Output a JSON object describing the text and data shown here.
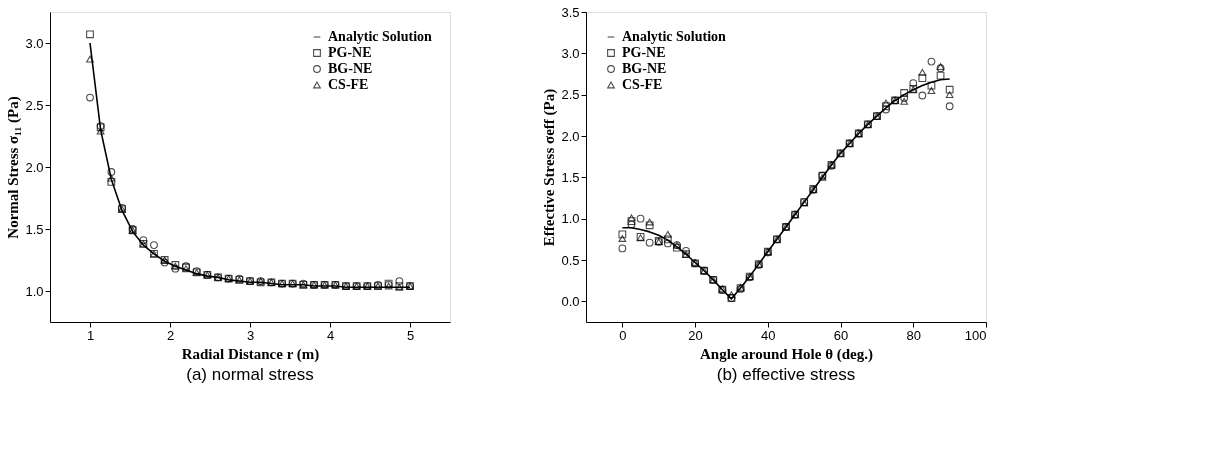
{
  "chart_data": [
    {
      "type": "scatter",
      "xlabel": "Radial Distance  r  (m)",
      "ylabel": "Normal Stress  σ₁₁  (Pa)",
      "annotations": [
        "(a) normal stress"
      ],
      "xlim": [
        0.5,
        5.5
      ],
      "xticks": [
        1,
        2,
        3,
        4,
        5
      ],
      "ylim": [
        0.75,
        3.25
      ],
      "yticks": [
        {
          "value": 1,
          "label": "1.0"
        },
        1.5,
        {
          "value": 2,
          "label": "2.0"
        },
        2.5,
        {
          "value": 3,
          "label": "3.0"
        }
      ],
      "grid": false,
      "legend": "top right",
      "x": [
        1.0,
        1.133,
        1.267,
        1.4,
        1.533,
        1.667,
        1.8,
        1.933,
        2.067,
        2.2,
        2.333,
        2.467,
        2.6,
        2.733,
        2.867,
        3.0,
        3.133,
        3.267,
        3.4,
        3.533,
        3.667,
        3.8,
        3.933,
        4.067,
        4.2,
        4.333,
        4.467,
        4.6,
        4.733,
        4.867,
        5.0
      ],
      "series": [
        {
          "name": "Analytic Solution",
          "type": "line",
          "marker": "none",
          "color": "#000000",
          "values": [
            3.0,
            2.3,
            1.9,
            1.65,
            1.48,
            1.37,
            1.3,
            1.24,
            1.2,
            1.17,
            1.14,
            1.12,
            1.11,
            1.09,
            1.08,
            1.07,
            1.07,
            1.06,
            1.05,
            1.05,
            1.05,
            1.04,
            1.04,
            1.04,
            1.03,
            1.03,
            1.03,
            1.03,
            1.03,
            1.03,
            1.03
          ]
        },
        {
          "name": "PG-NE",
          "type": "scatter",
          "marker": "square",
          "color": "#000000",
          "values": [
            3.07,
            2.32,
            1.88,
            1.66,
            1.49,
            1.38,
            1.3,
            1.25,
            1.21,
            1.19,
            1.15,
            1.13,
            1.11,
            1.1,
            1.09,
            1.08,
            1.07,
            1.07,
            1.06,
            1.06,
            1.05,
            1.05,
            1.05,
            1.05,
            1.04,
            1.04,
            1.04,
            1.04,
            1.06,
            1.04,
            1.04
          ]
        },
        {
          "name": "BG-NE",
          "type": "scatter",
          "marker": "circle",
          "color": "#000000",
          "values": [
            2.56,
            2.33,
            1.96,
            1.67,
            1.5,
            1.41,
            1.37,
            1.23,
            1.18,
            1.2,
            1.16,
            1.13,
            1.11,
            1.1,
            1.1,
            1.08,
            1.08,
            1.07,
            1.06,
            1.06,
            1.06,
            1.05,
            1.05,
            1.05,
            1.04,
            1.04,
            1.04,
            1.05,
            1.05,
            1.08,
            1.04
          ]
        },
        {
          "name": "CS-FE",
          "type": "scatter",
          "marker": "triangle",
          "color": "#000000",
          "values": [
            2.87,
            2.29,
            1.91,
            1.66,
            1.49,
            1.38,
            1.3,
            1.25,
            1.2,
            1.18,
            1.15,
            1.13,
            1.11,
            1.1,
            1.09,
            1.08,
            1.08,
            1.07,
            1.06,
            1.06,
            1.05,
            1.05,
            1.05,
            1.05,
            1.04,
            1.04,
            1.04,
            1.04,
            1.04,
            1.03,
            1.04
          ]
        }
      ]
    },
    {
      "type": "scatter",
      "xlabel": "Angle around Hole  θ  (deg.)",
      "ylabel": "Effective Stress  σeff  (Pa)",
      "annotations": [
        "(b) effective stress"
      ],
      "xlim": [
        -10,
        100
      ],
      "xticks": [
        0,
        20,
        40,
        60,
        80,
        100
      ],
      "ylim": [
        -0.25,
        3.5
      ],
      "yticks": [
        {
          "value": 0,
          "label": "0.0"
        },
        0.5,
        {
          "value": 1,
          "label": "1.0"
        },
        1.5,
        {
          "value": 2,
          "label": "2.0"
        },
        2.5,
        {
          "value": 3,
          "label": "3.0"
        },
        3.5
      ],
      "grid": false,
      "legend": "top left",
      "x": [
        0,
        2.5,
        5,
        7.5,
        10,
        12.5,
        15,
        17.5,
        20,
        22.5,
        25,
        27.5,
        30,
        32.5,
        35,
        37.5,
        40,
        42.5,
        45,
        47.5,
        50,
        52.5,
        55,
        57.5,
        60,
        62.5,
        65,
        67.5,
        70,
        72.5,
        75,
        77.5,
        80,
        82.5,
        85,
        87.5,
        90
      ],
      "series": [
        {
          "name": "Analytic Solution",
          "type": "line",
          "marker": "none",
          "color": "#000000",
          "values": [
            0.89,
            0.89,
            0.87,
            0.84,
            0.8,
            0.74,
            0.66,
            0.57,
            0.47,
            0.37,
            0.26,
            0.14,
            0.03,
            0.16,
            0.3,
            0.45,
            0.6,
            0.75,
            0.9,
            1.05,
            1.2,
            1.35,
            1.5,
            1.65,
            1.79,
            1.91,
            2.03,
            2.14,
            2.24,
            2.34,
            2.43,
            2.5,
            2.56,
            2.61,
            2.65,
            2.68,
            2.69
          ]
        },
        {
          "name": "PG-NE",
          "type": "scatter",
          "marker": "square",
          "color": "#000000",
          "values": [
            0.81,
            0.97,
            0.78,
            0.92,
            0.73,
            0.75,
            0.65,
            0.57,
            0.46,
            0.37,
            0.26,
            0.14,
            0.04,
            0.16,
            0.3,
            0.45,
            0.6,
            0.75,
            0.9,
            1.05,
            1.2,
            1.36,
            1.52,
            1.65,
            1.79,
            1.91,
            2.03,
            2.14,
            2.24,
            2.36,
            2.43,
            2.52,
            2.57,
            2.7,
            2.61,
            2.73,
            2.56
          ]
        },
        {
          "name": "BG-NE",
          "type": "scatter",
          "marker": "circle",
          "color": "#000000",
          "values": [
            0.64,
            0.93,
            1.0,
            0.71,
            0.72,
            0.7,
            0.68,
            0.61,
            0.46,
            0.37,
            0.26,
            0.14,
            0.04,
            0.15,
            0.29,
            0.44,
            0.59,
            0.75,
            0.9,
            1.05,
            1.2,
            1.35,
            1.52,
            1.64,
            1.79,
            1.91,
            2.03,
            2.14,
            2.24,
            2.32,
            2.43,
            2.46,
            2.64,
            2.49,
            2.9,
            2.82,
            2.36
          ]
        },
        {
          "name": "CS-FE",
          "type": "scatter",
          "marker": "triangle",
          "color": "#000000",
          "values": [
            0.76,
            1.01,
            0.77,
            0.96,
            0.72,
            0.81,
            0.68,
            0.57,
            0.47,
            0.37,
            0.26,
            0.15,
            0.08,
            0.17,
            0.3,
            0.45,
            0.6,
            0.75,
            0.9,
            1.05,
            1.19,
            1.35,
            1.5,
            1.65,
            1.79,
            1.91,
            2.03,
            2.14,
            2.24,
            2.4,
            2.43,
            2.42,
            2.56,
            2.77,
            2.55,
            2.84,
            2.5
          ]
        }
      ]
    }
  ]
}
